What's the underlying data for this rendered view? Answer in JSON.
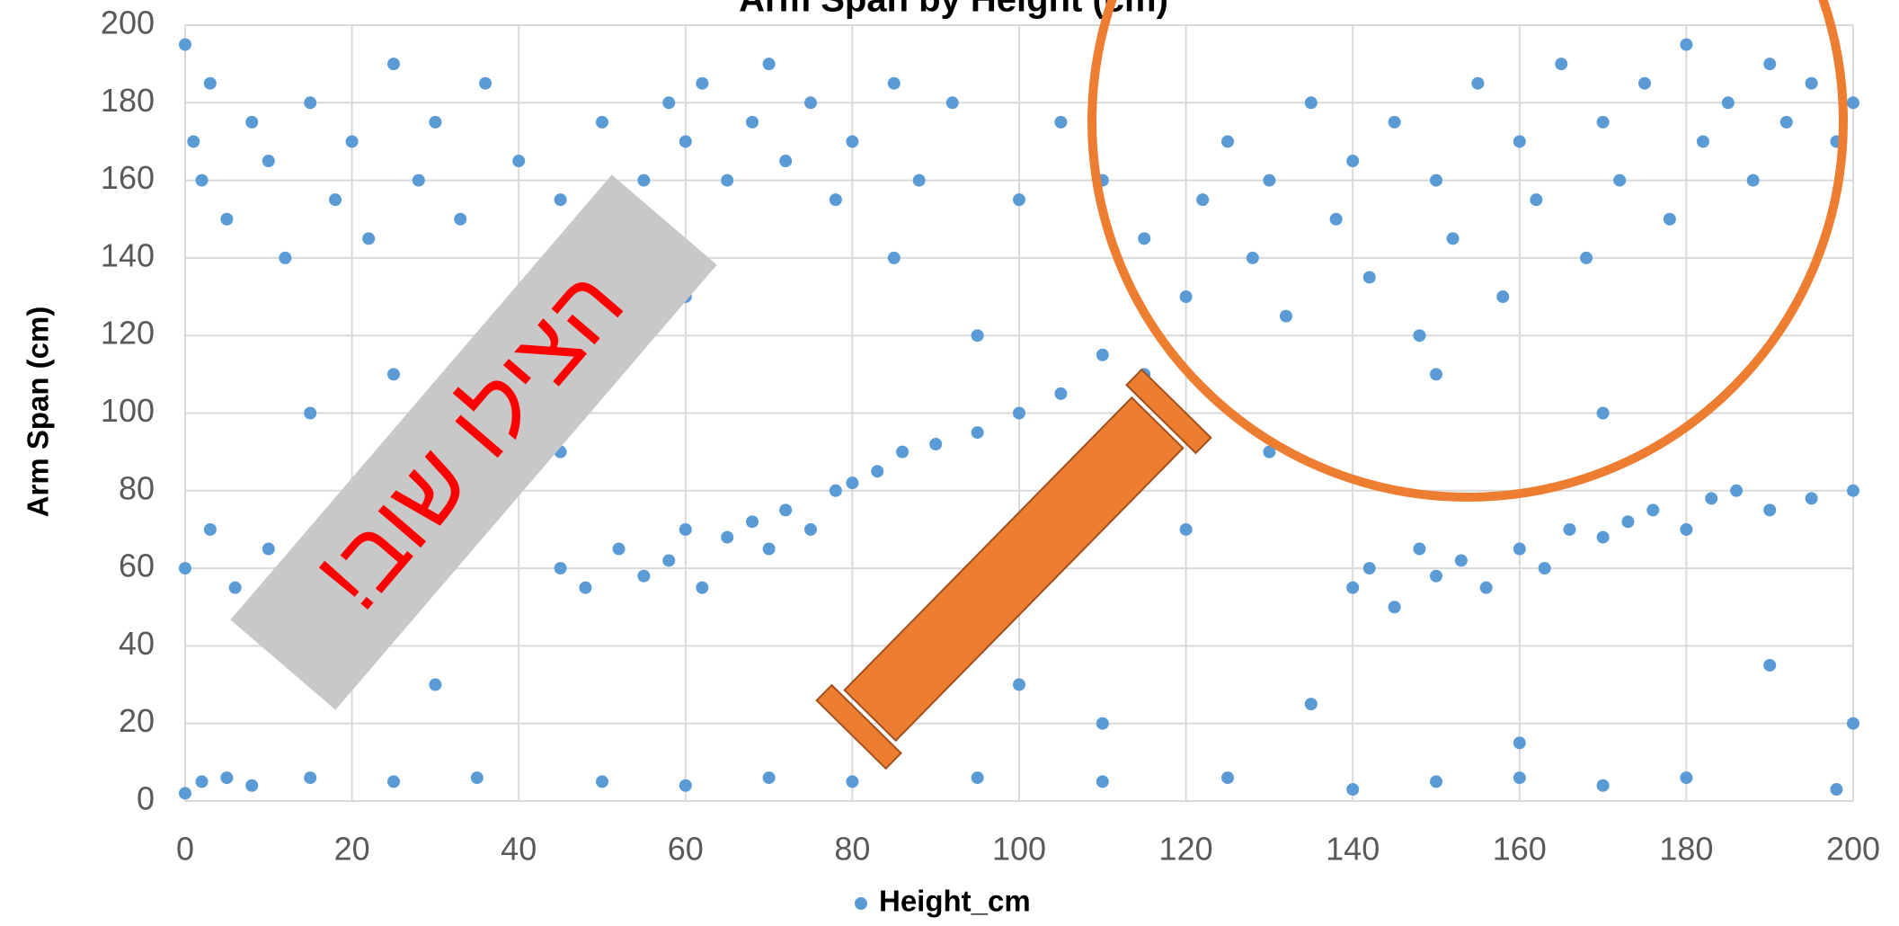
{
  "chart_data": {
    "type": "scatter",
    "title": "Arm Span by Height (cm)",
    "y_label": "Arm Span (cm)",
    "annotation": "הצילו שוב!",
    "x": [
      0,
      1,
      2,
      3,
      5,
      8,
      10,
      12,
      15,
      18,
      20,
      22,
      25,
      28,
      30,
      33,
      36,
      40,
      45,
      50,
      55,
      58,
      60,
      62,
      65,
      68,
      70,
      72,
      75,
      78,
      80,
      85,
      88,
      92,
      100,
      105,
      110,
      115,
      120,
      122,
      125,
      128,
      130,
      132,
      135,
      138,
      140,
      142,
      145,
      148,
      150,
      152,
      155,
      158,
      160,
      162,
      165,
      168,
      170,
      172,
      175,
      178,
      180,
      182,
      185,
      188,
      190,
      192,
      195,
      198,
      200,
      0,
      3,
      6,
      10,
      20,
      30,
      45,
      48,
      52,
      55,
      58,
      60,
      62,
      65,
      68,
      70,
      72,
      75,
      78,
      80,
      83,
      86,
      90,
      95,
      100,
      105,
      110,
      115,
      140,
      142,
      145,
      148,
      150,
      153,
      156,
      160,
      163,
      166,
      170,
      173,
      176,
      180,
      183,
      186,
      190,
      195,
      200,
      0,
      2,
      5,
      8,
      15,
      25,
      35,
      50,
      60,
      70,
      80,
      95,
      110,
      125,
      140,
      150,
      160,
      170,
      180,
      198,
      40,
      60,
      90,
      100,
      110,
      130,
      150,
      170,
      200,
      120,
      45,
      15,
      85,
      95,
      190,
      135,
      160,
      25
    ],
    "series": [
      {
        "name": "Height_cm",
        "color": "#5b9bd5",
        "values": [
          195,
          170,
          160,
          185,
          150,
          175,
          165,
          140,
          180,
          155,
          170,
          145,
          190,
          160,
          175,
          150,
          185,
          165,
          155,
          175,
          160,
          180,
          170,
          185,
          160,
          175,
          190,
          165,
          180,
          155,
          170,
          185,
          160,
          180,
          155,
          175,
          160,
          145,
          130,
          155,
          170,
          140,
          160,
          125,
          180,
          150,
          165,
          135,
          175,
          120,
          160,
          145,
          185,
          130,
          170,
          155,
          190,
          140,
          175,
          160,
          185,
          150,
          195,
          170,
          180,
          160,
          190,
          175,
          185,
          170,
          180,
          60,
          70,
          55,
          65,
          40,
          30,
          60,
          55,
          65,
          58,
          62,
          70,
          55,
          68,
          72,
          65,
          75,
          70,
          80,
          82,
          85,
          90,
          92,
          95,
          100,
          105,
          115,
          110,
          55,
          60,
          50,
          65,
          58,
          62,
          55,
          65,
          60,
          70,
          68,
          72,
          75,
          70,
          78,
          80,
          75,
          78,
          80,
          2,
          5,
          6,
          4,
          6,
          5,
          6,
          5,
          4,
          6,
          5,
          6,
          5,
          6,
          3,
          5,
          6,
          4,
          6,
          3,
          120,
          130,
          50,
          30,
          20,
          90,
          110,
          100,
          20,
          70,
          90,
          100,
          140,
          120,
          35,
          25,
          15,
          110
        ]
      }
    ],
    "xlim": [
      0,
      200
    ],
    "ylim": [
      0,
      200
    ],
    "xticks": [
      0,
      20,
      40,
      60,
      80,
      100,
      120,
      140,
      160,
      180,
      200
    ],
    "yticks": [
      0,
      20,
      40,
      60,
      80,
      100,
      120,
      140,
      160,
      180,
      200
    ],
    "grid": true,
    "legend": "bottom"
  }
}
